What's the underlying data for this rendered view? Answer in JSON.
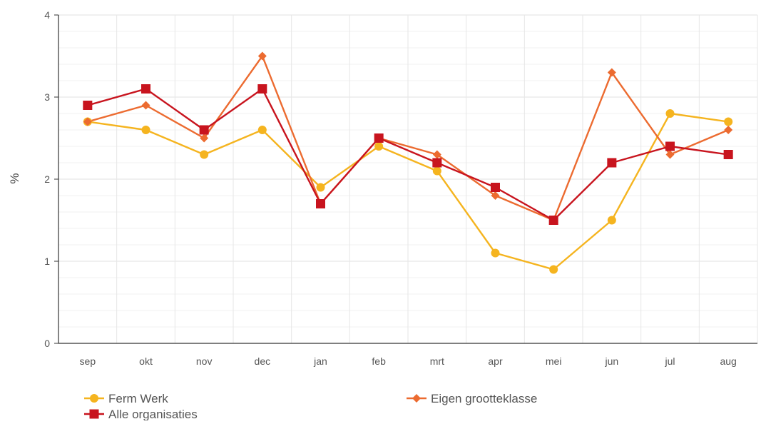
{
  "chart_data": {
    "type": "line",
    "title": "",
    "xlabel": "",
    "ylabel": "%",
    "ylim": [
      0,
      4
    ],
    "yticks": [
      "0",
      "1",
      "2",
      "3",
      "4"
    ],
    "categories": [
      "sep",
      "okt",
      "nov",
      "dec",
      "jan",
      "feb",
      "mrt",
      "apr",
      "mei",
      "jun",
      "jul",
      "aug"
    ],
    "grid": true,
    "legend_position": "bottom",
    "series": [
      {
        "name": "Ferm Werk",
        "color": "#f5b41f",
        "marker": "circle",
        "values": [
          2.7,
          2.6,
          2.3,
          2.6,
          1.9,
          2.4,
          2.1,
          1.1,
          0.9,
          1.5,
          2.8,
          2.7
        ]
      },
      {
        "name": "Eigen grootteklasse",
        "color": "#ec6b30",
        "marker": "diamond",
        "values": [
          2.7,
          2.9,
          2.5,
          3.5,
          1.7,
          2.5,
          2.3,
          1.8,
          1.5,
          3.3,
          2.3,
          2.6
        ]
      },
      {
        "name": "Alle organisaties",
        "color": "#c8141e",
        "marker": "square",
        "values": [
          2.9,
          3.1,
          2.6,
          3.1,
          1.7,
          2.5,
          2.2,
          1.9,
          1.5,
          2.2,
          2.4,
          2.3
        ]
      }
    ]
  }
}
